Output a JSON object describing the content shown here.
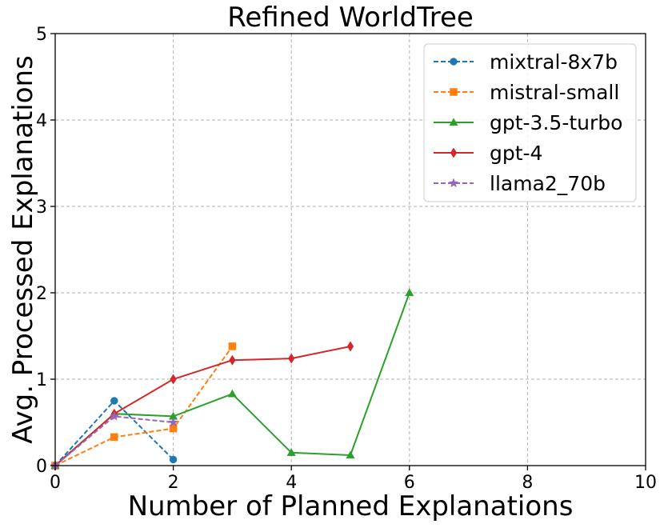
{
  "chart_data": {
    "type": "line",
    "title": "Refined WorldTree",
    "xlabel": "Number of Planned Explanations",
    "ylabel": "Avg. Processed Explanations",
    "xlim": [
      0,
      10
    ],
    "ylim": [
      0,
      5
    ],
    "xticks": [
      0,
      2,
      4,
      6,
      8,
      10
    ],
    "yticks": [
      0,
      1,
      2,
      3,
      4,
      5
    ],
    "grid": true,
    "legend_position": "upper right",
    "series": [
      {
        "name": "mixtral-8x7b",
        "color": "#1f77b4",
        "dash": true,
        "marker": "circle",
        "x": [
          0,
          1,
          2
        ],
        "y": [
          0,
          0.75,
          0.07
        ]
      },
      {
        "name": "mistral-small",
        "color": "#ff7f0e",
        "dash": true,
        "marker": "square",
        "x": [
          0,
          1,
          2,
          3
        ],
        "y": [
          0,
          0.33,
          0.43,
          1.38
        ]
      },
      {
        "name": "gpt-3.5-turbo",
        "color": "#2ca02c",
        "dash": false,
        "marker": "triangle",
        "x": [
          0,
          1,
          2,
          3,
          4,
          5,
          6
        ],
        "y": [
          0,
          0.6,
          0.57,
          0.83,
          0.15,
          0.12,
          2.0
        ]
      },
      {
        "name": "gpt-4",
        "color": "#d62728",
        "dash": false,
        "marker": "diamond",
        "x": [
          0,
          1,
          2,
          3,
          4,
          5
        ],
        "y": [
          0,
          0.6,
          1.0,
          1.22,
          1.24,
          1.38
        ]
      },
      {
        "name": "llama2_70b",
        "color": "#9467bd",
        "dash": true,
        "marker": "star",
        "x": [
          0,
          1,
          2
        ],
        "y": [
          0,
          0.57,
          0.5
        ]
      }
    ]
  }
}
